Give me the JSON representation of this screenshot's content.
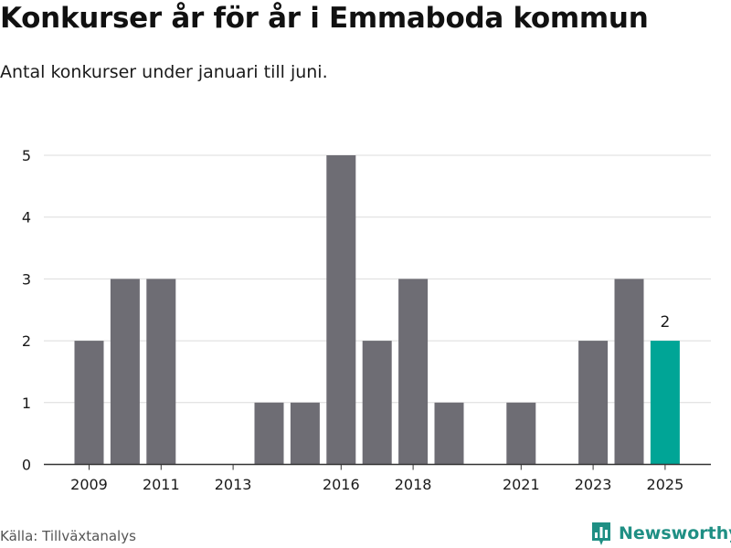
{
  "header": {
    "title": "Konkurser år för år i Emmaboda kommun",
    "subtitle": "Antal konkurser under januari till juni."
  },
  "footer": {
    "source": "Källa: Tillväxtanalys",
    "brand": "Newsworthy",
    "brand_icon": "bar-chart-logo-icon"
  },
  "colors": {
    "bar": "#6e6d74",
    "highlight": "#00a596",
    "grid": "#dcdcdc",
    "axis_text": "#1a1a1a",
    "brand": "#1f8f84"
  },
  "chart_data": {
    "type": "bar",
    "categories": [
      "2009",
      "2010",
      "2011",
      "2012",
      "2013",
      "2014",
      "2015",
      "2016",
      "2017",
      "2018",
      "2019",
      "2020",
      "2021",
      "2022",
      "2023",
      "2024",
      "2025"
    ],
    "values": [
      2,
      3,
      3,
      0,
      0,
      1,
      1,
      5,
      2,
      3,
      1,
      0,
      1,
      0,
      2,
      3,
      2
    ],
    "x_tick_labels": [
      "2009",
      "2011",
      "2013",
      "2016",
      "2018",
      "2021",
      "2023",
      "2025"
    ],
    "y_ticks": [
      0,
      1,
      2,
      3,
      4,
      5
    ],
    "ylim": [
      0,
      5
    ],
    "highlight_category": "2025",
    "data_labels": [
      {
        "category": "2025",
        "text": "2"
      }
    ],
    "grid": true,
    "xlabel": "",
    "ylabel": ""
  }
}
